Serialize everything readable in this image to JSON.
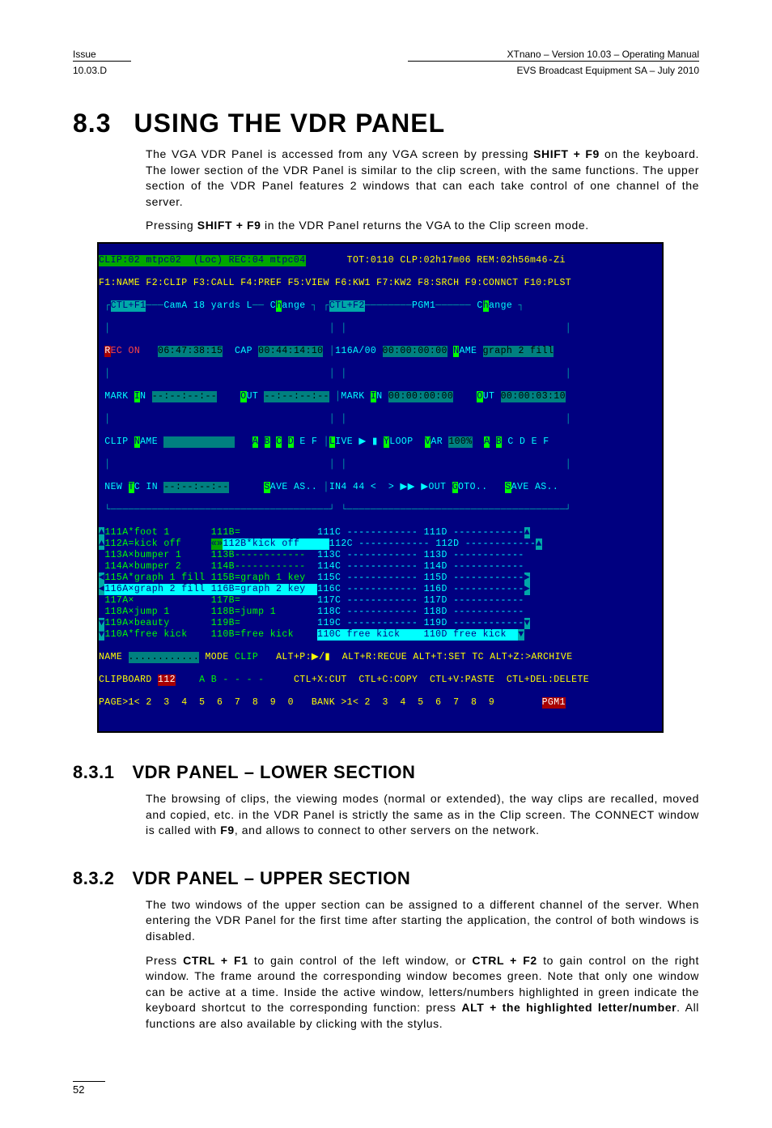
{
  "header": {
    "left_top": "Issue",
    "left_bottom": "10.03.D",
    "right_top": "XTnano – Version 10.03 – Operating Manual",
    "right_bottom": "EVS Broadcast Equipment SA – July 2010"
  },
  "section": {
    "num": "8.3",
    "title": "USING THE VDR PANEL"
  },
  "intro_p1": "The VGA VDR Panel is accessed from any VGA screen by pressing ",
  "intro_p1b": "SHIFT + F9",
  "intro_p1c": " on the keyboard. The lower section of the VDR Panel is similar to the clip screen, with the same functions. The upper section of the VDR Panel features 2 windows that can each take control of one channel of the server.",
  "intro_p2a": "Pressing ",
  "intro_p2b": "SHIFT + F9",
  "intro_p2c": " in the VDR Panel returns the VGA to the Clip screen mode.",
  "sub1": {
    "num": "8.3.1",
    "title": "VDR Panel – Lower Section"
  },
  "sub1_p": "The browsing of clips, the viewing modes (normal or extended), the way clips are recalled, moved and copied, etc. in the VDR Panel is strictly the same as in the Clip screen. The CONNECT window is called with ",
  "sub1_pb": "F9",
  "sub1_pc": ", and allows to connect to other servers on the network.",
  "sub2": {
    "num": "8.3.2",
    "title": "VDR Panel – Upper Section"
  },
  "sub2_p1": "The two windows of the upper section can be assigned to a different channel of the server. When entering the VDR Panel for the first time after starting the application, the control of both windows is disabled.",
  "sub2_p2a": "Press ",
  "sub2_p2b": "CTRL + F1",
  "sub2_p2c": " to gain control of the left window, or ",
  "sub2_p2d": "CTRL + F2",
  "sub2_p2e": " to gain control on the right window.  The frame around the corresponding window becomes green. Note that only one window can be active at a time. Inside the active window, letters/numbers highlighted in green indicate the keyboard shortcut to the corresponding function: press ",
  "sub2_p2f": "ALT + the highlighted letter/number",
  "sub2_p2g": ". All functions are also available by clicking with the stylus.",
  "page_number": "52",
  "terminal": {
    "line1_left": "CLIP:02 mtpc02  (Loc) REC:04 mtpc04",
    "line1_right": "TOT:0110 CLP:02h17m06 REM:02h56m46-Zi",
    "fkeys": "F1:NAME F2:CLIP F3:CALL F4:PREF F5:VIEW F6:KW1 F7:KW2 F8:SRCH F9:CONNCT F10:PLST",
    "left_title": "CamA 18 yards L",
    "right_title": "PGM1",
    "ctlf1": "CTL+F1",
    "ctlf2": "CTL+F2",
    "change": "Change",
    "rec_on": "REC ON",
    "rec_tc": "06:47:38:15",
    "cap": "CAP",
    "cap_tc": "00:44:14:10",
    "right_counter": "116A/00",
    "right_tc": "00:00:00:00",
    "right_name": "NAME",
    "right_namev": "graph 2 fill",
    "mark_in": "MARK IN",
    "noval": "--:--:--:--",
    "out": "OUT",
    "right_out_tc": "00:00:03:10",
    "clip_name": "CLIP NAME",
    "live": "LIVE",
    "yloop": "YLOOP",
    "var": "VAR",
    "varv": "100%",
    "new_tc_in": "NEW TC IN",
    "save_as": "SAVE AS..",
    "in_out": "IN4 44 <  > ▶▶ ▶OUT",
    "goto": "GOTO..",
    "clips": {
      "colA": [
        {
          "id": "111A",
          "mark": "*",
          "name": "foot 1"
        },
        {
          "id": "112A",
          "mark": "=",
          "name": "kick off"
        },
        {
          "id": "113A",
          "mark": "×",
          "name": "bumper 1"
        },
        {
          "id": "114A",
          "mark": "×",
          "name": "bumper 2"
        },
        {
          "id": "115A",
          "mark": "*",
          "name": "graph 1 fill"
        },
        {
          "id": "116A",
          "mark": "×",
          "name": "graph 2 fill"
        },
        {
          "id": "117A",
          "mark": "×",
          "name": ""
        },
        {
          "id": "118A",
          "mark": "×",
          "name": "jump 1"
        },
        {
          "id": "119A",
          "mark": "×",
          "name": "beauty"
        },
        {
          "id": "110A",
          "mark": "*",
          "name": "free kick"
        }
      ],
      "colB": [
        {
          "id": "111B",
          "name": "="
        },
        {
          "id": "112B",
          "name": "*kick off",
          "hl": true
        },
        {
          "id": "113B",
          "name": "------------"
        },
        {
          "id": "114B",
          "name": "------------"
        },
        {
          "id": "115B",
          "name": "=graph 1 key"
        },
        {
          "id": "116B",
          "name": "=graph 2 key"
        },
        {
          "id": "117B",
          "name": "="
        },
        {
          "id": "118B",
          "name": "=jump 1"
        },
        {
          "id": "119B",
          "name": "="
        },
        {
          "id": "110B",
          "name": "=free kick"
        }
      ],
      "colC": [
        "111C ------------",
        "112C ------------",
        "113C ------------",
        "114C ------------",
        "115C ------------",
        "116C ------------",
        "117C ------------",
        "118C ------------",
        "119C ------------",
        "110C free kick"
      ],
      "colD": [
        "111D ------------",
        "112D ------------",
        "113D ------------",
        "114D ------------",
        "115D ------------",
        "116D ------------",
        "117D ------------",
        "118D ------------",
        "119D ------------",
        "110D free kick"
      ]
    },
    "name_line": "NAME",
    "mode_clip": "MODE CLIP",
    "alt_line": "ALT+P:▶/▮  ALT+R:RECUE ALT+T:SET TC ALT+Z:>ARCHIVE",
    "clipboard": "CLIPBOARD",
    "cb_num": "112",
    "ab": "A B - - - -",
    "ctlx": "CTL+X:CUT",
    "ctlc": "CTL+C:COPY",
    "ctlv": "CTL+V:PASTE",
    "ctld": "CTL+DEL:DELETE",
    "page_line_left": "PAGE>1< 2  3  4  5  6  7  8  9  0",
    "page_line_mid": "BANK >1< 2  3  4  5  6  7  8  9",
    "pgm1": "PGM1"
  }
}
